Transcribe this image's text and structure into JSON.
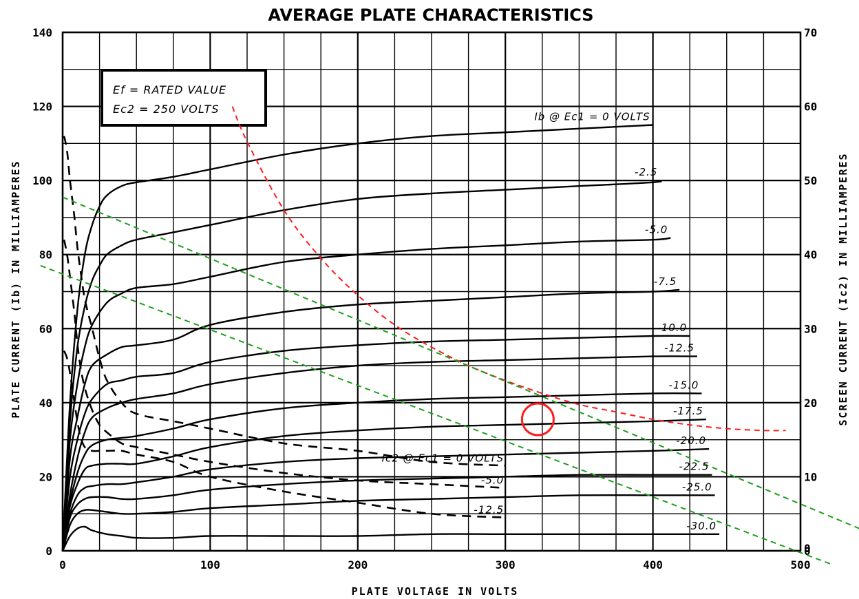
{
  "chart_data": {
    "type": "line",
    "title": "AVERAGE PLATE CHARACTERISTICS",
    "xlabel": "PLATE VOLTAGE IN VOLTS",
    "ylabel": "PLATE CURRENT (Ib) IN MILLIAMPERES",
    "y2label": "SCREEN CURRENT (Ic2) IN MILLIAMPERES",
    "xlim": [
      0,
      500
    ],
    "ylim": [
      0,
      140
    ],
    "y2lim": [
      0,
      70
    ],
    "x_ticks": [
      "0",
      "100",
      "200",
      "300",
      "400",
      "500"
    ],
    "y_ticks": [
      "0",
      "20",
      "40",
      "60",
      "80",
      "100",
      "120",
      "140"
    ],
    "y2_ticks": [
      "0",
      "10",
      "20",
      "30",
      "40",
      "50",
      "60",
      "70"
    ],
    "grid": true,
    "conditions": [
      "Ef = RATED VALUE",
      "Ec2 = 250 VOLTS"
    ],
    "plate_series": [
      {
        "label": "Ib @ Ec1 = 0 VOLTS",
        "x": [
          0,
          5,
          10,
          15,
          20,
          25,
          30,
          40,
          50,
          75,
          100,
          150,
          200,
          250,
          300,
          350,
          400
        ],
        "y": [
          0,
          40,
          65,
          80,
          88,
          93,
          96,
          98.5,
          99.5,
          101,
          103,
          107,
          110,
          112,
          113,
          114,
          115
        ]
      },
      {
        "label": "-2.5",
        "x": [
          0,
          5,
          10,
          15,
          20,
          25,
          30,
          40,
          50,
          75,
          100,
          150,
          200,
          250,
          300,
          350,
          400,
          405
        ],
        "y": [
          0,
          35,
          55,
          66,
          73,
          77,
          80,
          82.5,
          84,
          86,
          88,
          92,
          95,
          96.5,
          97.5,
          98.5,
          99.5,
          100
        ]
      },
      {
        "label": "-5.0",
        "x": [
          0,
          5,
          10,
          15,
          20,
          30,
          40,
          50,
          75,
          100,
          150,
          200,
          250,
          300,
          350,
          400,
          412
        ],
        "y": [
          0,
          30,
          45,
          55,
          61,
          67,
          69.5,
          71,
          72,
          74,
          78,
          80,
          81.5,
          82.5,
          83.5,
          84,
          84.5
        ]
      },
      {
        "label": "-7.5",
        "x": [
          0,
          5,
          10,
          15,
          20,
          30,
          40,
          50,
          75,
          100,
          150,
          200,
          250,
          300,
          350,
          400,
          418
        ],
        "y": [
          0,
          25,
          36,
          45,
          50,
          53,
          55,
          55.5,
          57,
          61,
          64.5,
          66.5,
          67.5,
          68.5,
          69.5,
          70,
          70.5
        ]
      },
      {
        "label": "-10.0",
        "x": [
          0,
          5,
          10,
          15,
          20,
          30,
          40,
          50,
          75,
          100,
          150,
          200,
          250,
          300,
          350,
          400,
          425
        ],
        "y": [
          0,
          20,
          30,
          37,
          41,
          45,
          46,
          47,
          48,
          51,
          54,
          55.5,
          56.5,
          57,
          57.5,
          58,
          58
        ]
      },
      {
        "label": "-12.5",
        "x": [
          0,
          5,
          10,
          15,
          20,
          30,
          40,
          50,
          75,
          100,
          150,
          200,
          250,
          300,
          350,
          400,
          430
        ],
        "y": [
          0,
          15,
          25,
          32,
          36,
          38.5,
          40,
          41,
          42.5,
          45,
          48,
          50,
          51,
          51.5,
          52,
          52.5,
          52.5
        ]
      },
      {
        "label": "-15.0",
        "x": [
          0,
          5,
          10,
          15,
          20,
          30,
          40,
          50,
          75,
          100,
          150,
          200,
          250,
          300,
          350,
          400,
          433
        ],
        "y": [
          0,
          13,
          21,
          26,
          28.5,
          30,
          30.5,
          31,
          33,
          35.5,
          38.5,
          40,
          41,
          41.5,
          42,
          42.5,
          42.5
        ]
      },
      {
        "label": "-17.5",
        "x": [
          0,
          5,
          10,
          15,
          20,
          30,
          40,
          50,
          75,
          100,
          150,
          200,
          250,
          300,
          350,
          400,
          436
        ],
        "y": [
          0,
          12,
          18,
          22,
          23,
          23.5,
          23.5,
          23.5,
          25.5,
          28,
          31,
          32.5,
          33.5,
          34,
          34.5,
          35,
          35.5
        ]
      },
      {
        "label": "-20.0",
        "x": [
          0,
          5,
          10,
          15,
          20,
          30,
          40,
          50,
          75,
          100,
          150,
          200,
          250,
          300,
          350,
          400,
          438
        ],
        "y": [
          0,
          10,
          15,
          17,
          17.5,
          18,
          18,
          18.5,
          20,
          22,
          24,
          25,
          25.5,
          26,
          26.5,
          27,
          27.5
        ]
      },
      {
        "label": "-22.5",
        "x": [
          0,
          5,
          10,
          15,
          20,
          30,
          40,
          50,
          75,
          100,
          150,
          200,
          250,
          300,
          350,
          400,
          440
        ],
        "y": [
          0,
          9,
          12.5,
          14,
          14.5,
          14.5,
          14,
          14,
          15,
          16.5,
          18,
          19,
          19.5,
          20,
          20.5,
          20.5,
          20.5
        ]
      },
      {
        "label": "-25.0",
        "x": [
          0,
          5,
          10,
          15,
          20,
          30,
          40,
          50,
          75,
          100,
          150,
          200,
          250,
          300,
          350,
          400,
          442
        ],
        "y": [
          0,
          7,
          10,
          11,
          11,
          10.5,
          10,
          10,
          10.5,
          11.5,
          12.5,
          13.5,
          14,
          14.5,
          15,
          15,
          15
        ]
      },
      {
        "label": "-30.0",
        "x": [
          0,
          5,
          10,
          15,
          20,
          30,
          40,
          50,
          75,
          100,
          150,
          200,
          250,
          300,
          350,
          400,
          445
        ],
        "y": [
          0,
          4,
          6,
          6.5,
          5.5,
          4.5,
          4,
          3.5,
          3.5,
          4,
          4,
          4,
          4.5,
          4.5,
          4.5,
          4.5,
          4.5
        ]
      }
    ],
    "screen_series": [
      {
        "label": "Ic2 @ Ec1 = 0 VOLTS",
        "x": [
          1,
          3,
          5,
          8,
          10,
          12,
          15,
          20,
          25,
          30,
          40,
          50,
          75,
          100,
          150,
          200,
          250,
          300
        ],
        "y": [
          56,
          54,
          50,
          45,
          41,
          38,
          34,
          30,
          26,
          23,
          20,
          18.5,
          17.5,
          16.5,
          14.5,
          13.5,
          12,
          11.5
        ]
      },
      {
        "label": "-5.0",
        "x": [
          1,
          3,
          5,
          8,
          10,
          12,
          15,
          20,
          25,
          30,
          40,
          50,
          75,
          100,
          150,
          200,
          250,
          300
        ],
        "y": [
          42,
          40,
          37,
          32,
          28,
          25,
          22,
          19,
          17,
          16,
          14.5,
          14,
          13,
          12,
          10.5,
          9.5,
          9,
          8.5
        ]
      },
      {
        "label": "-12.5",
        "x": [
          1,
          3,
          5,
          8,
          10,
          12,
          15,
          20,
          25,
          30,
          40,
          50,
          75,
          100,
          150,
          200,
          250,
          300
        ],
        "y": [
          27,
          26,
          24,
          20,
          17.5,
          15.5,
          14,
          13.5,
          13.5,
          13.5,
          13.5,
          13,
          12,
          10,
          8,
          6.5,
          5,
          4.5
        ]
      }
    ],
    "max_dissipation_curve": {
      "x": [
        115,
        125,
        150,
        175,
        200,
        225,
        250,
        275,
        300,
        325,
        350,
        375,
        400,
        425,
        450,
        475,
        490
      ],
      "y": [
        120,
        110.5,
        92,
        79,
        69,
        61,
        55,
        50,
        46,
        42.5,
        39.5,
        37.5,
        35.5,
        34,
        33,
        32.5,
        32.5
      ]
    },
    "load_lines": [
      {
        "x": [
          0,
          540
        ],
        "y": [
          95.5,
          6
        ]
      },
      {
        "x": [
          -15,
          520
        ],
        "y": [
          77,
          -3.5
        ]
      }
    ],
    "operating_point": {
      "x": 322,
      "y": 35.5
    },
    "annotations": {
      "screen_zero_label": "0"
    },
    "colors": {
      "curves": "#000000",
      "max_dissipation": "#ff1a1a",
      "load_lines": "#1e9e1e",
      "operating_point": "#ff1a1a"
    }
  }
}
